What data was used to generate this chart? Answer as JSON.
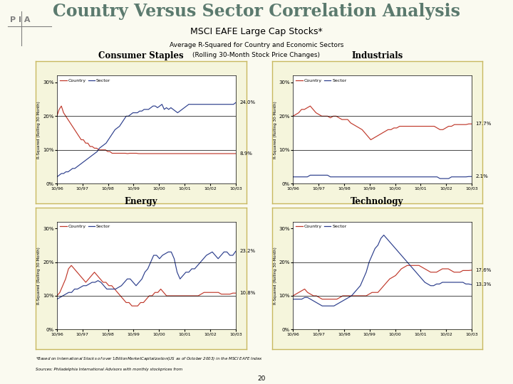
{
  "title": "Country Versus Sector Correlation Analysis",
  "subtitle1": "MSCI EAFE Large Cap Stocks*",
  "subtitle2": "Average R-Squared for Country and Economic Sectors",
  "subtitle3": "(Rolling 30-Month Stock Price Changes)",
  "bg_color": "#FAFAF0",
  "panel_bg": "#F5F5DC",
  "title_color": "#5B7A6E",
  "country_color": "#C0392B",
  "sector_color": "#2C3E8C",
  "footnote1": "*Based on International Stocks of over $1  Billion Market Capitalization (US$ as of October 2003) in the MSCI EAFE Index",
  "footnote2": "Sources: Philadelphia International Advisors with monthly stockprices from",
  "page_num": "20",
  "panels": [
    {
      "title": "Consumer Staples",
      "country_end_label": "8.9%",
      "sector_end_label": "24.0%",
      "country_data": [
        20,
        22,
        23,
        21,
        20,
        19,
        18,
        17,
        16,
        15,
        14,
        13,
        13,
        12,
        12,
        11,
        11,
        10.5,
        10.5,
        10,
        10,
        10,
        10,
        9.5,
        9.5,
        9,
        9,
        9,
        9,
        9,
        9,
        9,
        8.9,
        9,
        9,
        9,
        9,
        8.9,
        8.9,
        8.9,
        8.9,
        8.9,
        8.9,
        8.9,
        8.9,
        8.9,
        8.9,
        8.9,
        8.9,
        8.9,
        8.9,
        8.9,
        8.9,
        8.9,
        8.9,
        8.9,
        8.9,
        8.9,
        8.9,
        8.9,
        8.9,
        8.9,
        8.9,
        8.9,
        8.9,
        8.9,
        8.9,
        8.9,
        8.9,
        8.9,
        8.9,
        8.9,
        8.9,
        8.9,
        8.9,
        8.9,
        8.9,
        8.9,
        8.9,
        8.9,
        8.9,
        8.9
      ],
      "sector_data": [
        2,
        2.5,
        3,
        3,
        3.5,
        3.5,
        4,
        4.5,
        4.5,
        5,
        5.5,
        6,
        6.5,
        7,
        7.5,
        8,
        8.5,
        9,
        9.5,
        10.5,
        11,
        11.5,
        12,
        13,
        14,
        15,
        16,
        16.5,
        17,
        18,
        19,
        20,
        20,
        20.5,
        21,
        21,
        21,
        21.5,
        21.5,
        22,
        22,
        22,
        22.5,
        23,
        23,
        22.5,
        23,
        23.5,
        22,
        22.5,
        22,
        22.5,
        22,
        21.5,
        21,
        21.5,
        22,
        22.5,
        23,
        23.5,
        23.5,
        23.5,
        23.5,
        23.5,
        23.5,
        23.5,
        23.5,
        23.5,
        23.5,
        23.5,
        23.5,
        23.5,
        23.5,
        23.5,
        23.5,
        23.5,
        23.5,
        23.5,
        23.5,
        23.5,
        24.0
      ]
    },
    {
      "title": "Industrials",
      "country_end_label": "17.7%",
      "sector_end_label": "2.1%",
      "country_data": [
        20,
        20.5,
        21,
        22,
        22,
        22.5,
        23,
        22,
        21,
        20.5,
        20,
        20,
        20,
        19.5,
        20,
        20,
        19.5,
        19,
        19,
        19,
        18,
        17.5,
        17,
        16.5,
        16,
        15,
        14,
        13,
        13.5,
        14,
        14.5,
        15,
        15.5,
        16,
        16,
        16.5,
        16.5,
        17,
        17,
        17,
        17,
        17,
        17,
        17,
        17,
        17,
        17,
        17,
        17,
        17,
        16.5,
        16,
        16,
        16.5,
        17,
        17,
        17.5,
        17.5,
        17.5,
        17.5,
        17.5,
        17.7,
        17.7
      ],
      "sector_data": [
        2,
        2,
        2,
        2,
        2,
        2,
        2.5,
        2.5,
        2.5,
        2.5,
        2.5,
        2.5,
        2.5,
        2,
        2,
        2,
        2,
        2,
        2,
        2,
        2,
        2,
        2,
        2,
        2,
        2,
        2,
        2,
        2,
        2,
        2,
        2,
        2,
        2,
        2,
        2,
        2,
        2,
        2,
        2,
        2,
        2,
        2,
        2,
        2,
        2,
        2,
        2,
        2,
        2,
        2,
        1.5,
        1.5,
        1.5,
        1.5,
        2,
        2,
        2,
        2,
        2,
        2,
        2.1,
        2.1
      ]
    },
    {
      "title": "Energy",
      "country_end_label": "10.8%",
      "sector_end_label": "23.2%",
      "country_data": [
        10,
        11,
        13,
        15,
        18,
        19,
        18,
        17,
        16,
        15,
        14,
        15,
        16,
        17,
        16,
        15,
        14,
        14,
        13,
        13,
        12,
        11,
        10,
        9,
        8,
        8,
        7,
        7,
        7,
        8,
        8,
        9,
        10,
        10,
        11,
        11,
        12,
        11,
        10,
        10,
        10,
        10,
        10,
        10,
        10,
        10,
        10,
        10,
        10,
        10,
        10.5,
        11,
        11,
        11,
        11,
        11,
        11,
        10.5,
        10.5,
        10.5,
        10.5,
        10.8,
        10.8
      ],
      "sector_data": [
        9,
        9.5,
        10,
        10.5,
        11,
        11,
        12,
        12,
        12.5,
        13,
        13,
        13.5,
        14,
        14,
        14.5,
        14,
        13,
        12,
        12,
        12,
        12,
        12.5,
        13,
        14,
        15,
        15,
        14,
        13,
        14,
        15,
        17,
        18,
        20,
        22,
        22,
        21,
        22,
        22.5,
        23,
        23,
        21,
        17,
        15,
        16,
        17,
        17,
        18,
        18,
        19,
        20,
        21,
        22,
        22.5,
        23,
        22,
        21,
        22,
        23,
        23,
        22,
        22,
        23.2
      ]
    },
    {
      "title": "Technology",
      "country_end_label": "17.6%",
      "sector_end_label": "13.3%",
      "country_data": [
        10,
        10.5,
        11,
        11.5,
        12,
        11,
        10.5,
        10,
        10,
        9.5,
        9,
        9,
        9,
        9,
        9,
        9,
        9.5,
        10,
        10,
        10,
        10,
        10,
        10,
        10,
        10,
        10,
        10.5,
        11,
        11,
        11,
        12,
        13,
        14,
        15,
        15.5,
        16,
        17,
        18,
        18.5,
        19,
        19,
        19,
        19,
        19,
        18.5,
        18,
        17.5,
        17,
        17,
        17,
        17.5,
        18,
        18,
        18,
        17.5,
        17,
        17,
        17,
        17.5,
        17.5,
        17.5,
        17.6
      ],
      "sector_data": [
        9,
        9,
        9,
        9,
        9.5,
        9.5,
        9,
        8.5,
        8,
        7.5,
        7,
        7,
        7,
        7,
        7,
        7.5,
        8,
        8.5,
        9,
        9.5,
        10,
        11,
        12,
        13,
        15,
        17,
        20,
        22,
        24,
        25,
        27,
        28,
        27,
        26,
        25,
        24,
        23,
        22,
        21,
        20,
        19,
        18,
        17,
        16,
        15,
        14,
        13.5,
        13,
        13,
        13.5,
        13.5,
        14,
        14,
        14,
        14,
        14,
        14,
        14,
        14,
        13.5,
        13.5,
        13.3
      ]
    }
  ],
  "x_ticks": [
    "10/96",
    "10/97",
    "10/98",
    "10/99",
    "10/00",
    "10/01",
    "10/02",
    "10/03"
  ],
  "ylabel": "R-Squared (Rolling 30-Month)",
  "ylim": [
    0,
    32
  ],
  "yticks": [
    0,
    10,
    20,
    30
  ],
  "yticklabels": [
    "0%",
    "10%",
    "20%",
    "30%"
  ]
}
